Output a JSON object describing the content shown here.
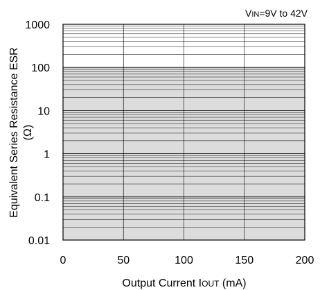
{
  "chart_data": {
    "type": "area",
    "annotation": "VIN=9V to 42V",
    "annotation_parts": {
      "main": "V",
      "sub": "IN",
      "rest": "=9V to 42V"
    },
    "xlabel": "Output Current IOUT (mA)",
    "xlabel_parts": {
      "main": "Output Current I",
      "sub": "OUT",
      "rest": " (mA)"
    },
    "ylabel": "Equivalent Series Resistance ESR",
    "ylabel_unit": "(Ω)",
    "xlim": [
      0,
      200
    ],
    "ylim": [
      0.01,
      1000
    ],
    "yscale": "log",
    "x_ticks": [
      "0",
      "50",
      "100",
      "150",
      "200"
    ],
    "x_tick_values": [
      0,
      50,
      100,
      150,
      200
    ],
    "y_ticks": [
      "0.01",
      "0.1",
      "1",
      "10",
      "100",
      "1000"
    ],
    "y_tick_values": [
      0.01,
      0.1,
      1,
      10,
      100,
      1000
    ],
    "grid": true,
    "stable_region": {
      "x": [
        0,
        200
      ],
      "y": [
        0.01,
        100
      ],
      "color": "#dcdcdc"
    }
  }
}
